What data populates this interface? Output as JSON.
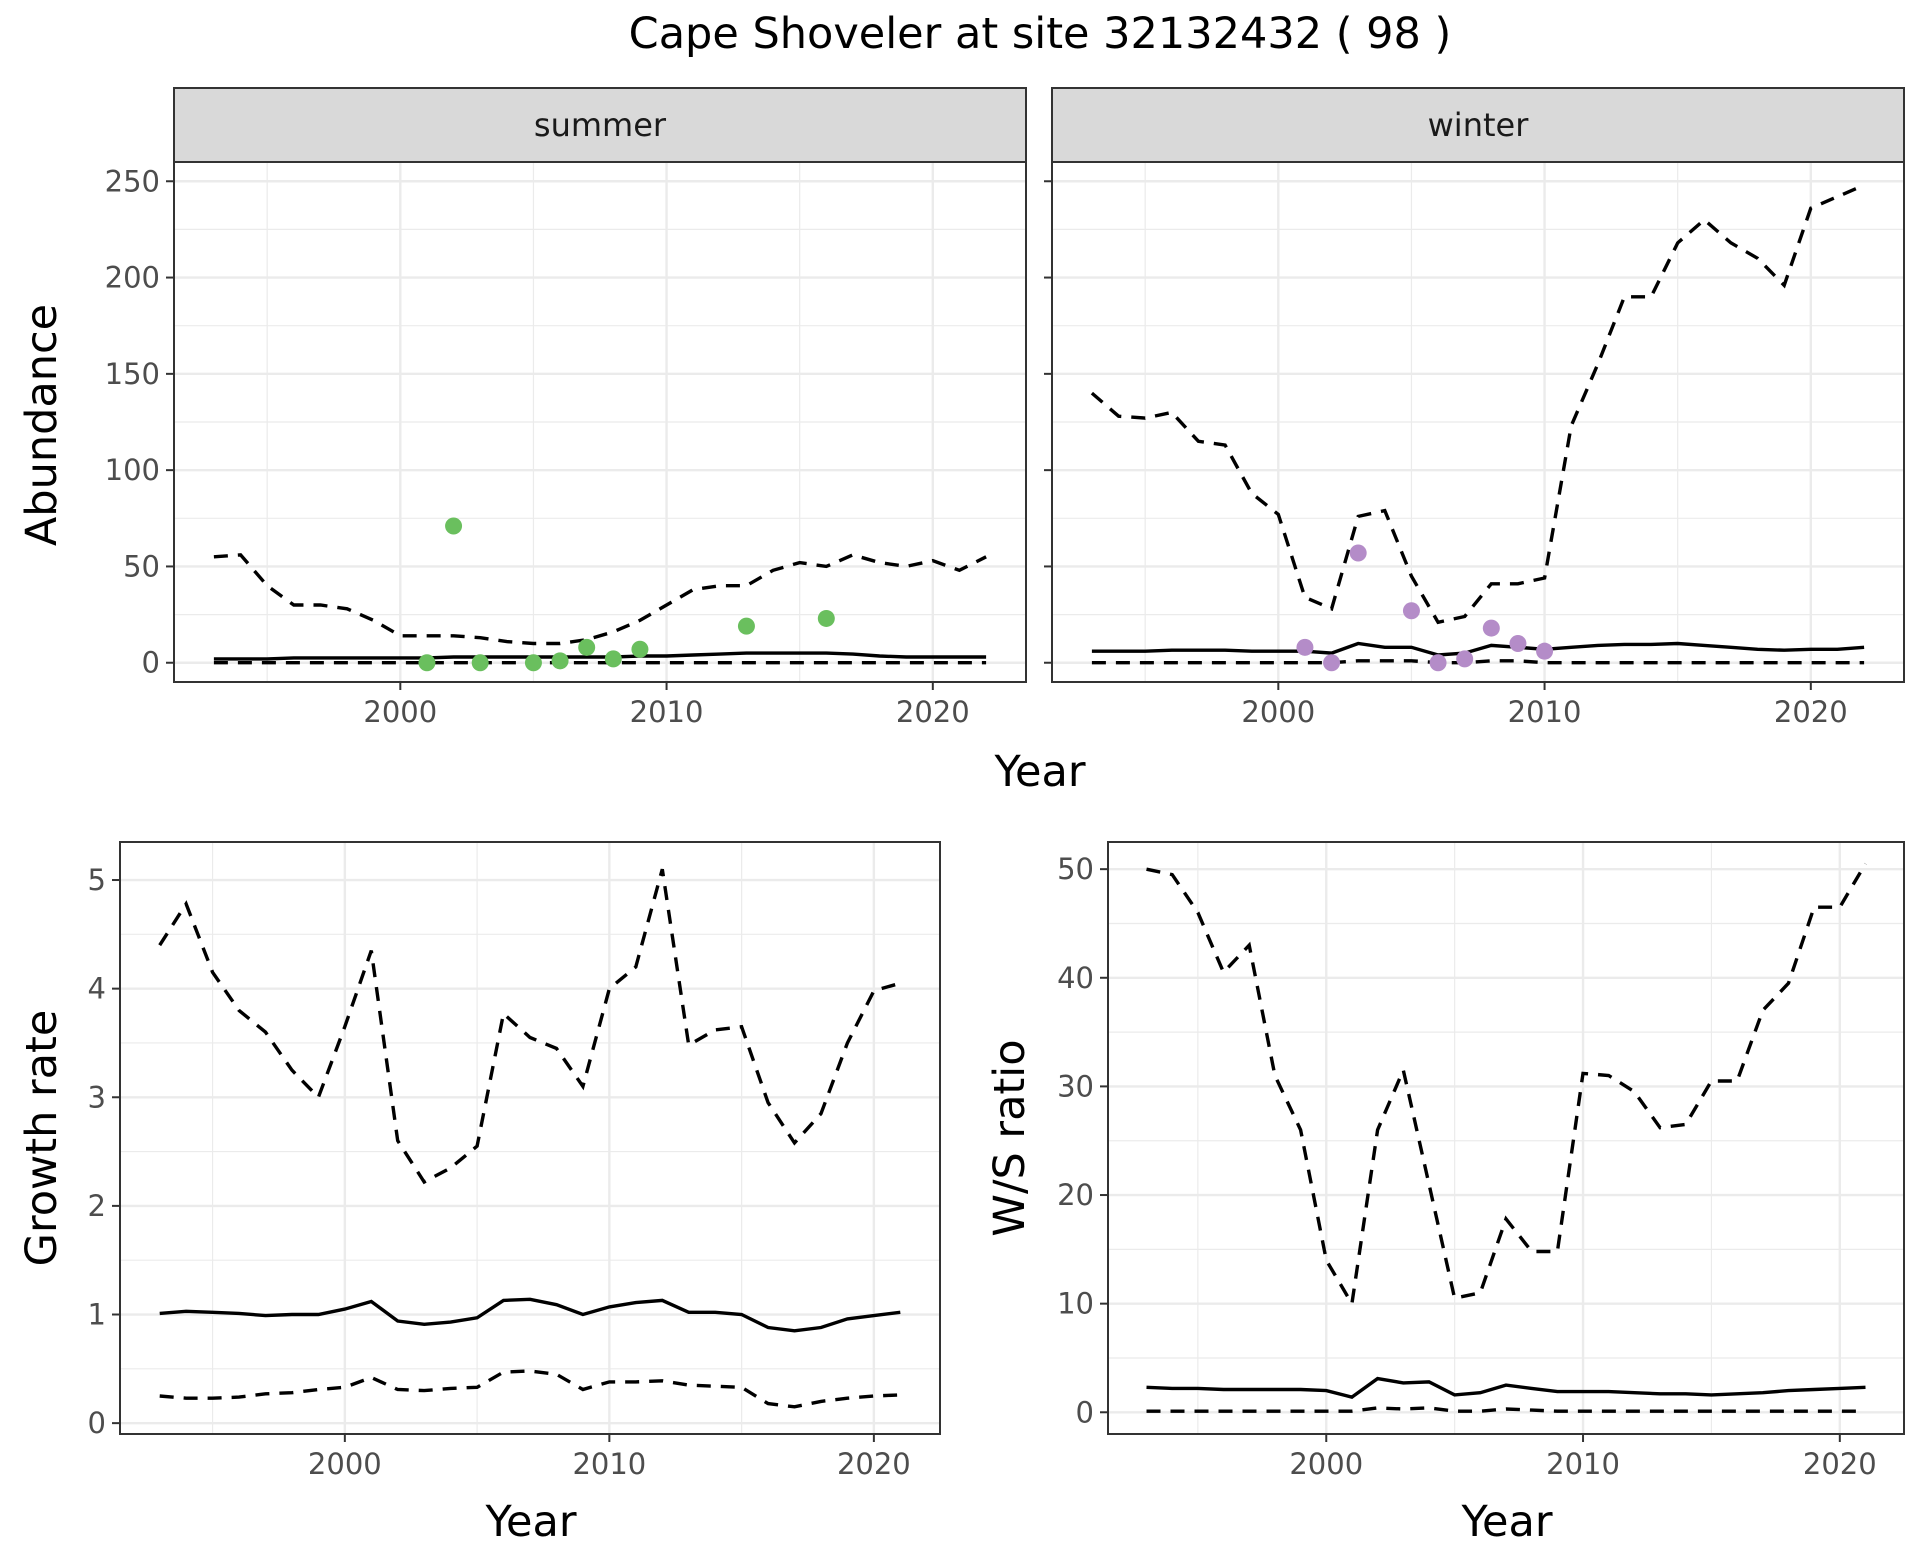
{
  "title": "Cape Shoveler at site 32132432 ( 98 )",
  "colors": {
    "summer_points": "#6abf5e",
    "winter_points": "#b48cc8"
  },
  "chart_data": [
    {
      "type": "line",
      "facet": "summer",
      "xlabel": "Year",
      "ylabel": "Abundance",
      "xlim": [
        1991.5,
        2023.5
      ],
      "ylim": [
        -10,
        260
      ],
      "xticks": [
        2000,
        2010,
        2020
      ],
      "yticks": [
        0,
        50,
        100,
        150,
        200,
        250
      ],
      "grid": true,
      "x": [
        1993,
        1994,
        1995,
        1996,
        1997,
        1998,
        1999,
        2000,
        2001,
        2002,
        2003,
        2004,
        2005,
        2006,
        2007,
        2008,
        2009,
        2010,
        2011,
        2012,
        2013,
        2014,
        2015,
        2016,
        2017,
        2018,
        2019,
        2020,
        2021,
        2022
      ],
      "mean": [
        2,
        2,
        2,
        2.5,
        2.5,
        2.5,
        2.5,
        2.5,
        2.5,
        3,
        3,
        3,
        3,
        3,
        3,
        3,
        3.5,
        3.5,
        4,
        4.5,
        5,
        5,
        5,
        5,
        4.5,
        3.5,
        3,
        3,
        3,
        3
      ],
      "upper": [
        55,
        56,
        40,
        30,
        30,
        28,
        22,
        14,
        14,
        14,
        13,
        11,
        10,
        10,
        12,
        16,
        22,
        30,
        38,
        40,
        40,
        48,
        52,
        50,
        56,
        52,
        50,
        53,
        48,
        55
      ],
      "lower": [
        0,
        0,
        0,
        0,
        0,
        0,
        0,
        0,
        0,
        0,
        0,
        0,
        0,
        0,
        0,
        0,
        0,
        0,
        0,
        0,
        0,
        0,
        0,
        0,
        0,
        0,
        0,
        0,
        0,
        0
      ],
      "points": {
        "x": [
          2001,
          2002,
          2003,
          2005,
          2006,
          2007,
          2008,
          2009,
          2013,
          2016
        ],
        "y": [
          0,
          71,
          0,
          0,
          1,
          8,
          2,
          7,
          19,
          23
        ]
      }
    },
    {
      "type": "line",
      "facet": "winter",
      "xlabel": "Year",
      "ylabel": "Abundance",
      "xlim": [
        1991.5,
        2023.5
      ],
      "ylim": [
        -10,
        260
      ],
      "xticks": [
        2000,
        2010,
        2020
      ],
      "yticks": [
        0,
        50,
        100,
        150,
        200,
        250
      ],
      "grid": true,
      "x": [
        1993,
        1994,
        1995,
        1996,
        1997,
        1998,
        1999,
        2000,
        2001,
        2002,
        2003,
        2004,
        2005,
        2006,
        2007,
        2008,
        2009,
        2010,
        2011,
        2012,
        2013,
        2014,
        2015,
        2016,
        2017,
        2018,
        2019,
        2020,
        2021,
        2022
      ],
      "mean": [
        6,
        6,
        6,
        6.5,
        6.5,
        6.5,
        6,
        6,
        6,
        5,
        10,
        8,
        8,
        4,
        5,
        9,
        8,
        7,
        8,
        9,
        9.5,
        9.5,
        10,
        9,
        8,
        7,
        6.5,
        7,
        7,
        8
      ],
      "upper": [
        140,
        128,
        127,
        130,
        115,
        113,
        88,
        77,
        34,
        28,
        76,
        79,
        45,
        21,
        24,
        41,
        41,
        44,
        123,
        155,
        190,
        190,
        218,
        230,
        218,
        210,
        196,
        236,
        242,
        248
      ],
      "lower": [
        0,
        0,
        0,
        0,
        0,
        0,
        0,
        0,
        0,
        0,
        1,
        1,
        1,
        0,
        0,
        1,
        1,
        0,
        0,
        0,
        0,
        0,
        0,
        0,
        0,
        0,
        0,
        0,
        0,
        0
      ],
      "points": {
        "x": [
          2001,
          2002,
          2003,
          2005,
          2006,
          2007,
          2008,
          2009,
          2010
        ],
        "y": [
          8,
          0,
          57,
          27,
          0,
          2,
          18,
          10,
          6
        ]
      }
    },
    {
      "type": "line",
      "xlabel": "Year",
      "ylabel": "Growth rate",
      "xlim": [
        1991.5,
        2022.5
      ],
      "ylim": [
        -0.1,
        5.35
      ],
      "xticks": [
        2000,
        2010,
        2020
      ],
      "yticks": [
        0,
        1,
        2,
        3,
        4,
        5
      ],
      "grid": true,
      "x": [
        1993,
        1994,
        1995,
        1996,
        1997,
        1998,
        1999,
        2000,
        2001,
        2002,
        2003,
        2004,
        2005,
        2006,
        2007,
        2008,
        2009,
        2010,
        2011,
        2012,
        2013,
        2014,
        2015,
        2016,
        2017,
        2018,
        2019,
        2020,
        2021
      ],
      "mean": [
        1.01,
        1.03,
        1.02,
        1.01,
        0.99,
        1.0,
        1.0,
        1.05,
        1.12,
        0.94,
        0.91,
        0.93,
        0.97,
        1.13,
        1.14,
        1.09,
        1.0,
        1.07,
        1.11,
        1.13,
        1.02,
        1.02,
        1.0,
        0.88,
        0.85,
        0.88,
        0.96,
        0.99,
        1.02
      ],
      "upper": [
        4.4,
        4.78,
        4.15,
        3.8,
        3.6,
        3.25,
        3.0,
        3.65,
        4.35,
        2.6,
        2.22,
        2.35,
        2.55,
        3.77,
        3.55,
        3.45,
        3.1,
        4.0,
        4.2,
        5.1,
        3.48,
        3.62,
        3.65,
        2.95,
        2.58,
        2.85,
        3.5,
        3.98,
        4.05
      ],
      "lower": [
        0.25,
        0.23,
        0.23,
        0.24,
        0.27,
        0.28,
        0.31,
        0.33,
        0.42,
        0.31,
        0.3,
        0.32,
        0.33,
        0.47,
        0.48,
        0.45,
        0.31,
        0.38,
        0.38,
        0.39,
        0.35,
        0.34,
        0.33,
        0.18,
        0.15,
        0.2,
        0.23,
        0.25,
        0.26
      ]
    },
    {
      "type": "line",
      "xlabel": "Year",
      "ylabel": "W/S ratio",
      "xlim": [
        1991.5,
        2022.5
      ],
      "ylim": [
        -2,
        52.5
      ],
      "xticks": [
        2000,
        2010,
        2020
      ],
      "yticks": [
        0,
        10,
        20,
        30,
        40,
        50
      ],
      "grid": true,
      "x": [
        1993,
        1994,
        1995,
        1996,
        1997,
        1998,
        1999,
        2000,
        2001,
        2002,
        2003,
        2004,
        2005,
        2006,
        2007,
        2008,
        2009,
        2010,
        2011,
        2012,
        2013,
        2014,
        2015,
        2016,
        2017,
        2018,
        2019,
        2020,
        2021
      ],
      "mean": [
        2.3,
        2.2,
        2.2,
        2.1,
        2.1,
        2.1,
        2.1,
        2.0,
        1.4,
        3.1,
        2.7,
        2.8,
        1.6,
        1.8,
        2.5,
        2.2,
        1.9,
        1.9,
        1.9,
        1.8,
        1.7,
        1.7,
        1.6,
        1.7,
        1.8,
        2.0,
        2.1,
        2.2,
        2.3
      ],
      "upper": [
        50,
        49.5,
        46,
        40.5,
        43,
        31,
        26,
        14,
        10,
        26,
        31.5,
        21,
        10.5,
        11,
        17.8,
        14.8,
        14.8,
        31.2,
        31,
        29.5,
        26.2,
        26.5,
        30.5,
        30.5,
        37,
        39.5,
        46.5,
        46.5,
        50.5
      ],
      "lower": [
        0.1,
        0.1,
        0.1,
        0.1,
        0.1,
        0.1,
        0.1,
        0.1,
        0.1,
        0.4,
        0.3,
        0.4,
        0.1,
        0.1,
        0.3,
        0.2,
        0.1,
        0.1,
        0.1,
        0.1,
        0.1,
        0.1,
        0.1,
        0.1,
        0.1,
        0.1,
        0.1,
        0.1,
        0.1
      ]
    }
  ]
}
